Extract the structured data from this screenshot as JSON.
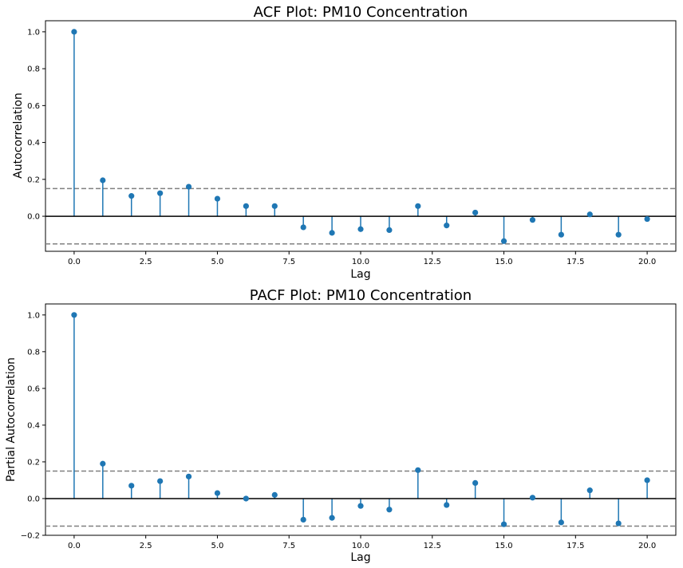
{
  "chart_data": [
    {
      "type": "stem",
      "title": "ACF Plot: PM10 Concentration",
      "xlabel": "Lag",
      "ylabel": "Autocorrelation",
      "x_ticks": [
        "0.0",
        "2.5",
        "5.0",
        "7.5",
        "10.0",
        "12.5",
        "15.0",
        "17.5",
        "20.0"
      ],
      "y_ticks": [
        "0.0",
        "0.2",
        "0.4",
        "0.6",
        "0.8",
        "1.0"
      ],
      "xlim": [
        -1,
        21
      ],
      "ylim": [
        -0.19,
        1.06
      ],
      "confidence_bound": 0.15,
      "grid": false,
      "colors": {
        "stem": "#1f77b4",
        "baseline": "#000000",
        "bound": "#808080"
      },
      "x": [
        0,
        1,
        2,
        3,
        4,
        5,
        6,
        7,
        8,
        9,
        10,
        11,
        12,
        13,
        14,
        15,
        16,
        17,
        18,
        19,
        20
      ],
      "values": [
        1.0,
        0.195,
        0.11,
        0.125,
        0.16,
        0.095,
        0.055,
        0.055,
        -0.06,
        -0.09,
        -0.07,
        -0.075,
        0.055,
        -0.05,
        0.02,
        -0.135,
        -0.02,
        -0.1,
        0.01,
        -0.1,
        -0.015
      ]
    },
    {
      "type": "stem",
      "title": "PACF Plot: PM10 Concentration",
      "xlabel": "Lag",
      "ylabel": "Partial Autocorrelation",
      "x_ticks": [
        "0.0",
        "2.5",
        "5.0",
        "7.5",
        "10.0",
        "12.5",
        "15.0",
        "17.5",
        "20.0"
      ],
      "y_ticks": [
        "−0.2",
        "0.0",
        "0.2",
        "0.4",
        "0.6",
        "0.8",
        "1.0"
      ],
      "xlim": [
        -1,
        21
      ],
      "ylim": [
        -0.2,
        1.06
      ],
      "confidence_bound": 0.15,
      "grid": false,
      "colors": {
        "stem": "#1f77b4",
        "baseline": "#000000",
        "bound": "#808080"
      },
      "x": [
        0,
        1,
        2,
        3,
        4,
        5,
        6,
        7,
        8,
        9,
        10,
        11,
        12,
        13,
        14,
        15,
        16,
        17,
        18,
        19,
        20
      ],
      "values": [
        1.0,
        0.19,
        0.07,
        0.095,
        0.12,
        0.03,
        0.0,
        0.02,
        -0.115,
        -0.105,
        -0.04,
        -0.06,
        0.155,
        -0.035,
        0.085,
        -0.14,
        0.005,
        -0.13,
        0.045,
        -0.135,
        0.1
      ]
    }
  ]
}
